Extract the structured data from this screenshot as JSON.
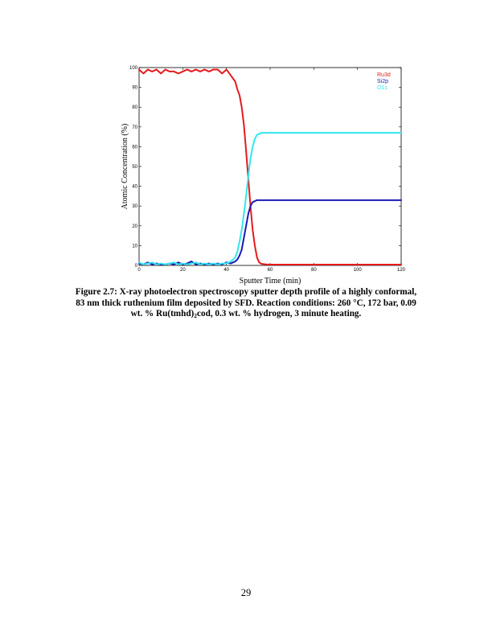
{
  "figure": {
    "chart_data": {
      "type": "line",
      "title": "",
      "xlabel": "Sputter Time (min)",
      "ylabel": "Atomic Concentration (%)",
      "xlim": [
        0,
        120
      ],
      "ylim": [
        0,
        100
      ],
      "xticks": [
        0,
        20,
        40,
        60,
        80,
        100,
        120
      ],
      "yticks": [
        0,
        10,
        20,
        30,
        40,
        50,
        60,
        70,
        80,
        90,
        100
      ],
      "grid": false,
      "legend_position": "top-right",
      "x": [
        0,
        2,
        4,
        6,
        8,
        10,
        12,
        14,
        16,
        18,
        20,
        22,
        24,
        26,
        28,
        30,
        32,
        34,
        36,
        38,
        40,
        42,
        44,
        45,
        46,
        47,
        48,
        49,
        50,
        51,
        52,
        53,
        54,
        55,
        56,
        58,
        60,
        62,
        66,
        70,
        75,
        80,
        85,
        90,
        95,
        100,
        105,
        110,
        115,
        120
      ],
      "series": [
        {
          "name": "Ru3d",
          "color": "#e41a1c",
          "values": [
            99,
            97,
            99,
            98,
            99,
            97,
            99,
            98,
            98,
            97,
            98,
            99,
            98,
            99,
            98,
            99,
            98,
            99,
            99,
            97,
            99,
            96,
            93,
            89,
            86,
            80,
            71,
            58,
            44,
            30,
            18,
            10,
            4,
            1.5,
            0.8,
            0.5,
            0.4,
            0.4,
            0.4,
            0.4,
            0.4,
            0.4,
            0.4,
            0.4,
            0.4,
            0.4,
            0.4,
            0.4,
            0.4,
            0.4
          ]
        },
        {
          "name": "Si2p",
          "color": "#1a1ab4",
          "values": [
            1,
            0.5,
            1.5,
            0.5,
            1,
            0.5,
            0.5,
            1,
            0.5,
            1.5,
            0.5,
            1,
            2,
            0.5,
            1,
            0.5,
            1,
            0.5,
            1,
            0.5,
            1.5,
            1,
            2,
            3,
            5,
            8,
            14,
            20,
            26,
            30,
            32,
            32.5,
            33,
            33,
            33,
            33,
            33,
            33,
            33,
            33,
            33,
            33,
            33,
            33,
            33,
            33,
            33,
            33,
            33,
            33
          ]
        },
        {
          "name": "O1s",
          "color": "#33e6f0",
          "values": [
            1.5,
            0.5,
            1,
            1.5,
            0.5,
            1,
            0.5,
            1,
            1.5,
            0.5,
            1,
            0.5,
            1,
            1.5,
            0.5,
            1,
            0.5,
            1,
            0.5,
            1,
            1,
            2,
            4,
            7,
            12,
            18,
            26,
            35,
            45,
            54,
            60,
            64,
            66,
            66.5,
            67,
            67,
            67,
            67,
            67,
            67,
            67,
            67,
            67,
            67,
            67,
            67,
            67,
            67,
            67,
            67
          ]
        }
      ]
    },
    "caption": {
      "label": "Figure 2.7:",
      "text_before_sub": " X-ray photoelectron spectroscopy sputter depth profile of a highly conformal, 83 nm thick ruthenium film deposited by SFD.  Reaction conditions: 260 °C, 172 bar, 0.09 wt. % Ru(tmhd)",
      "sub": "2",
      "text_after_sub": "cod, 0.3 wt. % hydrogen, 3 minute heating."
    }
  },
  "page_number": "29"
}
